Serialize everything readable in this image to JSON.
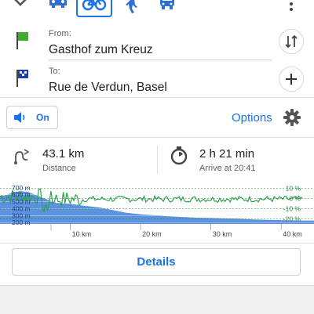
{
  "modes": {
    "items": [
      {
        "name": "car",
        "selected": false
      },
      {
        "name": "bicycle",
        "selected": true
      },
      {
        "name": "walk",
        "selected": false
      },
      {
        "name": "transit",
        "selected": false
      }
    ]
  },
  "route": {
    "from_label": "From:",
    "from_value": "Gasthof zum Kreuz",
    "to_label": "To:",
    "to_value": "Rue de Verdun, Basel"
  },
  "voice": {
    "label": "On",
    "enabled": true
  },
  "options_label": "Options",
  "stats": {
    "distance_value": "43.1 km",
    "distance_label": "Distance",
    "time_value": "2 h 21 min",
    "arrive_label": "Arrive at 20:41"
  },
  "elevation_chart": {
    "type": "area",
    "x_ticks": [
      "10 km",
      "20 km",
      "30 km",
      "40 km"
    ],
    "x_tick_values_km": [
      10,
      20,
      30,
      40
    ],
    "x_range_km": [
      0,
      43.1
    ],
    "y_ticks_left": [
      "700 m",
      "600 m",
      "500 m",
      "400 m",
      "300 m",
      "200 m"
    ],
    "y_tick_values_m": [
      700,
      600,
      500,
      400,
      300,
      200
    ],
    "y_range_m": [
      180,
      720
    ],
    "y_ticks_right": [
      "10 %",
      "0 %",
      "-10 %",
      "-20 %"
    ],
    "y_tick_values_pct": [
      10,
      0,
      -10,
      -20
    ],
    "y_range_pct": [
      -25,
      12
    ],
    "elevation_profile_m": [
      [
        0,
        580
      ],
      [
        1,
        600
      ],
      [
        2,
        640
      ],
      [
        3,
        650
      ],
      [
        4,
        640
      ],
      [
        5,
        600
      ],
      [
        6,
        560
      ],
      [
        7,
        520
      ],
      [
        8,
        480
      ],
      [
        10,
        470
      ],
      [
        12,
        440
      ],
      [
        14,
        420
      ],
      [
        16,
        380
      ],
      [
        18,
        340
      ],
      [
        20,
        320
      ],
      [
        22,
        305
      ],
      [
        24,
        290
      ],
      [
        26,
        280
      ],
      [
        28,
        270
      ],
      [
        30,
        265
      ],
      [
        32,
        260
      ],
      [
        34,
        255
      ],
      [
        36,
        245
      ],
      [
        38,
        240
      ],
      [
        40,
        235
      ],
      [
        42,
        232
      ],
      [
        43.1,
        230
      ]
    ],
    "colors": {
      "elevation_fill": "#3f7fd8",
      "grade_line": "#2aa14b",
      "grid": "#ffffff"
    }
  },
  "details_label": "Details",
  "colors": {
    "accent": "#1a73e8",
    "from_flag": "#3dae2b",
    "to_flag": "#1a3fb0"
  }
}
